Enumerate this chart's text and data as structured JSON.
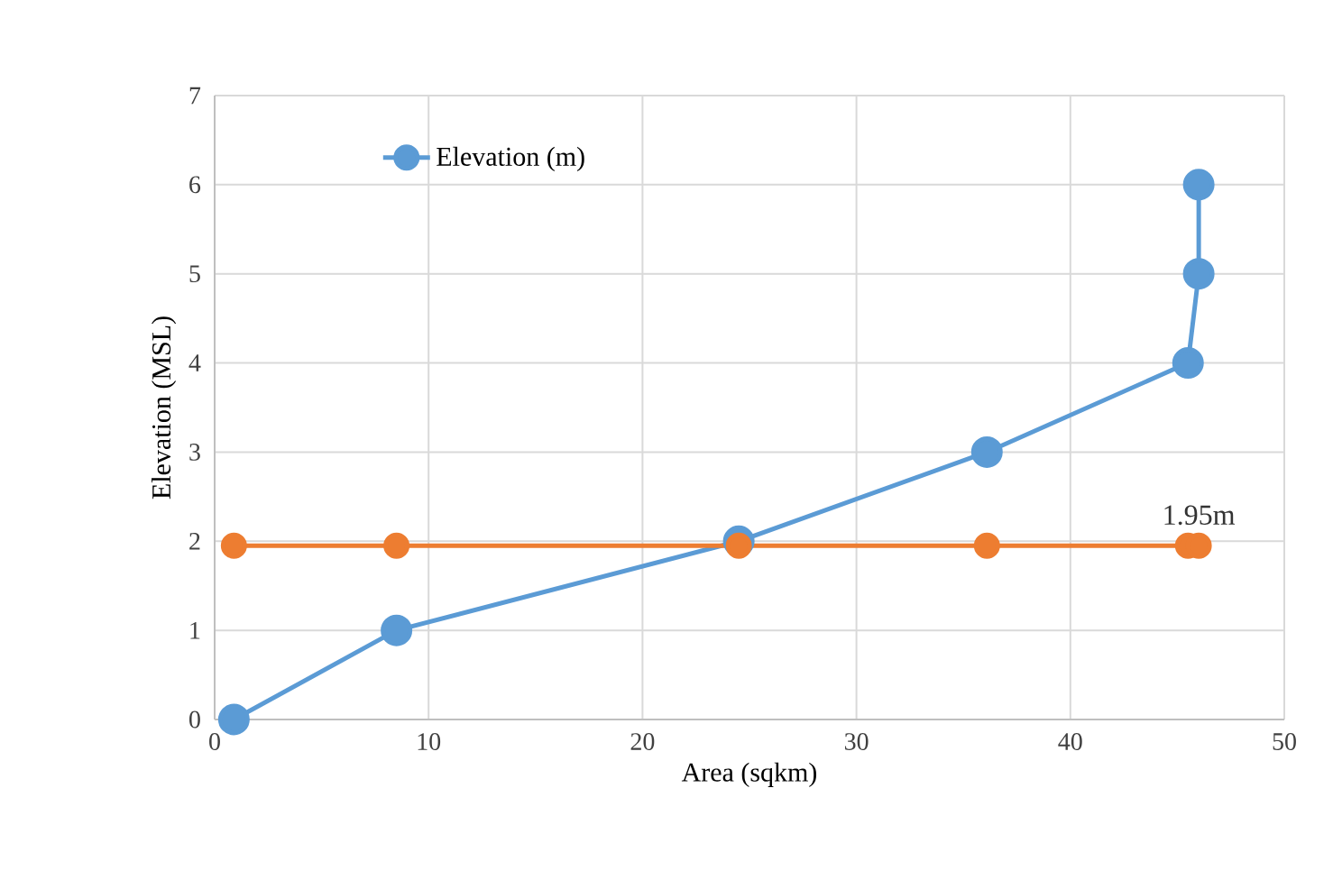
{
  "chart_data": {
    "type": "line",
    "xlabel": "Area (sqkm)",
    "ylabel": "Elevation (MSL)",
    "xlim": [
      0,
      50
    ],
    "xticks": [
      0,
      10,
      20,
      30,
      40,
      50
    ],
    "ylim": [
      0,
      7
    ],
    "yticks": [
      0,
      1,
      2,
      3,
      4,
      5,
      6,
      7
    ],
    "grid": true,
    "legend": "top left",
    "marker": "circle",
    "line_style": "solid",
    "series": [
      {
        "name": "Elevation (m)",
        "color": "#5b9bd5",
        "x": [
          0.9,
          8.5,
          24.5,
          36.1,
          45.5,
          46.0,
          46.0
        ],
        "values": [
          0,
          1,
          2,
          3,
          4,
          5,
          6
        ]
      },
      {
        "color": "#ed7d31",
        "x": [
          0.9,
          8.5,
          24.5,
          36.1,
          45.5,
          46.0
        ],
        "values": [
          1.95,
          1.95,
          1.95,
          1.95,
          1.95,
          1.95
        ]
      }
    ],
    "annotations": [
      {
        "text": "1.95m",
        "x": 46,
        "y": 1.95
      }
    ]
  }
}
